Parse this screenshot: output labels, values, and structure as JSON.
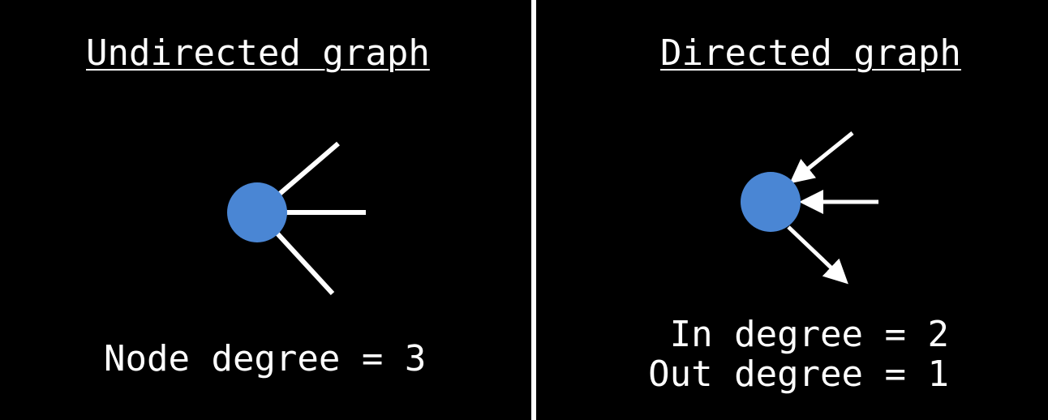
{
  "left_panel": {
    "title": "Undirected graph",
    "caption": "Node degree = 3"
  },
  "right_panel": {
    "title": "Directed graph",
    "in_degree_text": "In degree = 2",
    "out_degree_text": "Out degree = 1"
  },
  "colors": {
    "background": "#000000",
    "node": "#4a86d4",
    "edge": "#ffffff",
    "text": "#ffffff"
  }
}
